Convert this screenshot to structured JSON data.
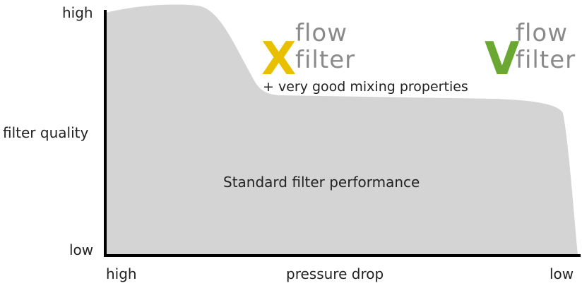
{
  "y_axis": {
    "label": "filter quality",
    "top": "high",
    "bottom": "low"
  },
  "x_axis": {
    "label": "pressure drop",
    "left": "high",
    "right": "low"
  },
  "area_label": "Standard filter performance",
  "annotation": "+ very good mixing properties",
  "logos": [
    {
      "letter": "X",
      "line1": "flow",
      "line2": "filter",
      "color": "#e8c000"
    },
    {
      "letter": "V",
      "line1": "flow",
      "line2": "filter",
      "color": "#6aa832"
    }
  ],
  "colors": {
    "area": "#d4d4d4",
    "axis": "#000000",
    "logo_text": "#8a8a8a"
  }
}
